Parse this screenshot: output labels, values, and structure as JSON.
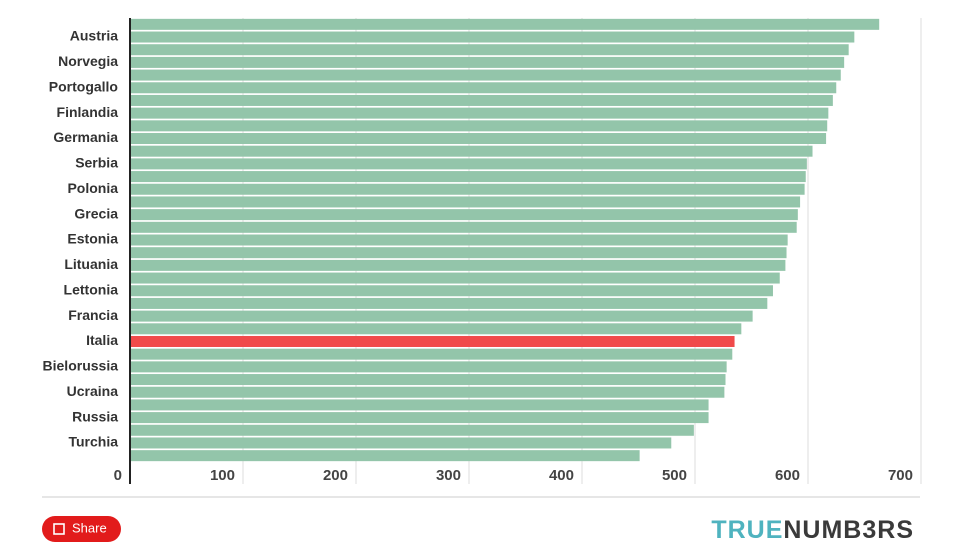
{
  "chart_data": {
    "type": "hbar",
    "categories": [
      null,
      "Austria",
      null,
      "Norvegia",
      null,
      "Portogallo",
      null,
      "Finlandia",
      null,
      "Germania",
      null,
      "Serbia",
      null,
      "Polonia",
      null,
      "Grecia",
      null,
      "Estonia",
      null,
      "Lituania",
      null,
      "Lettonia",
      null,
      "Francia",
      null,
      "Italia",
      null,
      "Bielorussia",
      null,
      "Ucraina",
      null,
      "Russia",
      null,
      "Turchia",
      null
    ],
    "values": [
      663,
      641,
      636,
      632,
      629,
      625,
      622,
      618,
      617,
      616,
      604,
      599,
      598,
      597,
      593,
      591,
      590,
      582,
      581,
      580,
      575,
      569,
      564,
      551,
      541,
      535,
      533,
      528,
      527,
      526,
      512,
      512,
      499,
      479,
      451
    ],
    "color": "#93c5aa",
    "highlight": "Italia",
    "highlight_color": "#f04a4a",
    "xlim": [
      0,
      700
    ],
    "xticks": [
      0,
      100,
      200,
      300,
      400,
      500,
      600,
      700
    ],
    "grid": true
  },
  "footer": {
    "share": "Share",
    "logo": [
      "TRUE",
      "NUMB3RS"
    ]
  }
}
